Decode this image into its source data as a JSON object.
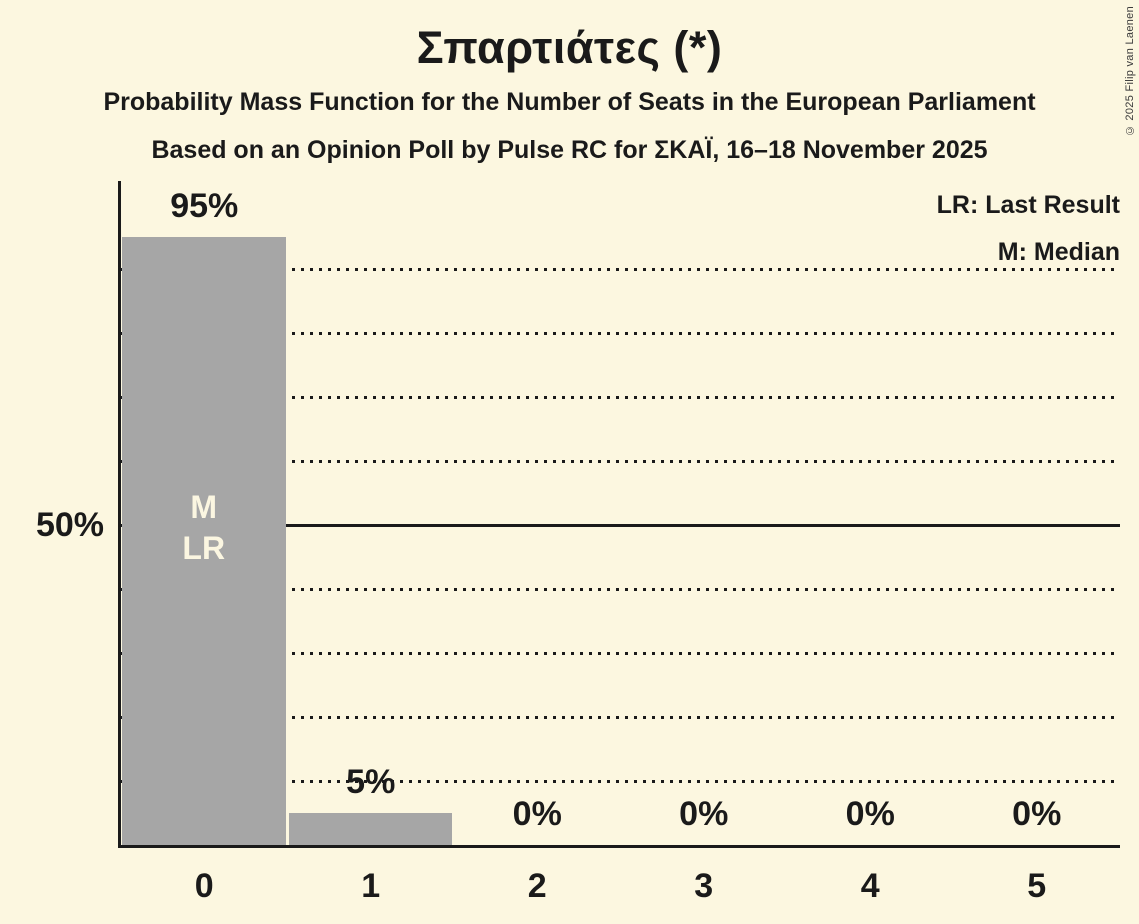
{
  "header": {
    "title": "Σπαρτιάτες (*)",
    "subtitle1": "Probability Mass Function for the Number of Seats in the European Parliament",
    "subtitle2": "Based on an Opinion Poll by Pulse RC for ΣΚΑΪ, 16–18 November 2025"
  },
  "legend": {
    "lr": "LR: Last Result",
    "m": "M: Median"
  },
  "copyright": "© 2025 Filip van Laenen",
  "chart_data": {
    "type": "bar",
    "title": "Σπαρτιάτες (*)",
    "subtitle1": "Probability Mass Function for the Number of Seats in the European Parliament",
    "subtitle2": "Based on an Opinion Poll by Pulse RC for ΣΚΑΪ, 16–18 November 2025",
    "categories": [
      "0",
      "1",
      "2",
      "3",
      "4",
      "5"
    ],
    "values": [
      95,
      5,
      0,
      0,
      0,
      0
    ],
    "value_labels": [
      "95%",
      "5%",
      "0%",
      "0%",
      "0%",
      "0%"
    ],
    "ylim": [
      0,
      100
    ],
    "grid": "dotted-horizontal",
    "gridlines_pct": [
      10,
      20,
      30,
      40,
      60,
      70,
      80,
      90
    ],
    "reference_line": {
      "pct": 50,
      "label": "50%"
    },
    "legend_entries": [
      "LR: Last Result",
      "M: Median"
    ],
    "legend_position": "top-right",
    "median_seat_index": 0,
    "last_result_seat_index": 0,
    "bar_annotations": [
      {
        "index": 0,
        "lines": [
          "M",
          "LR"
        ]
      }
    ],
    "colors": {
      "background": "#FCF7E0",
      "bar": "#A6A6A6",
      "text": "#1A1A1A",
      "bar_label_text": "#FBF6E1"
    }
  }
}
